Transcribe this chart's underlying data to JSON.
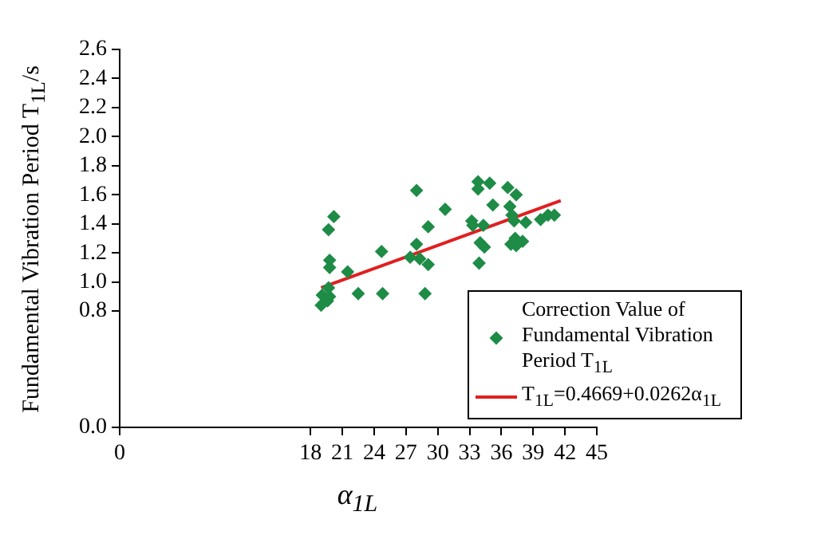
{
  "chart_data": {
    "type": "scatter",
    "xlabel": "α$_{1L}$",
    "ylabel": "Fundamental Vibration Period T$_{1L}$/s",
    "xlim": [
      0,
      45
    ],
    "xticks": [
      0,
      18,
      21,
      24,
      27,
      30,
      33,
      36,
      39,
      42,
      45
    ],
    "ylim": [
      0,
      2.6
    ],
    "yticks": [
      {
        "value": 0,
        "label": "0.0"
      },
      {
        "value": 0.8,
        "label": "0.8"
      },
      {
        "value": 1,
        "label": "1.0"
      },
      {
        "value": 1.2,
        "label": "1.2"
      },
      {
        "value": 1.4,
        "label": "1.4"
      },
      {
        "value": 1.6,
        "label": "1.6"
      },
      {
        "value": 1.8,
        "label": "1.8"
      },
      {
        "value": 2,
        "label": "2.0"
      },
      {
        "value": 2.2,
        "label": "2.2"
      },
      {
        "value": 2.4,
        "label": "2.4"
      },
      {
        "value": 2.6,
        "label": "2.6"
      }
    ],
    "legend": "bottom right",
    "series": [
      {
        "name": "Correction Value of Fundamental Vibration Period T$_{1L}$",
        "color": "#1e8c46",
        "marker": "diamond",
        "x": [
          19.0,
          19.1,
          19.6,
          19.8,
          19.7,
          19.8,
          19.8,
          19.7,
          20.2,
          21.5,
          22.5,
          24.7,
          24.8,
          27.4,
          28.0,
          28.0,
          28.3,
          28.8,
          29.1,
          29.1,
          30.7,
          33.2,
          33.3,
          33.8,
          33.8,
          34.0,
          33.9,
          34.3,
          34.4,
          34.9,
          35.2,
          36.6,
          36.8,
          37.4,
          37.0,
          37.2,
          36.9,
          37.3,
          37.4,
          38.3,
          39.7,
          40.4,
          41.0,
          38.0
        ],
        "values": [
          0.84,
          0.91,
          0.87,
          0.9,
          0.96,
          1.1,
          1.15,
          1.36,
          1.45,
          1.07,
          0.92,
          1.21,
          0.92,
          1.17,
          1.26,
          1.63,
          1.16,
          0.92,
          1.12,
          1.38,
          1.5,
          1.42,
          1.39,
          1.69,
          1.64,
          1.27,
          1.13,
          1.39,
          1.24,
          1.68,
          1.53,
          1.65,
          1.52,
          1.6,
          1.46,
          1.42,
          1.26,
          1.3,
          1.25,
          1.41,
          1.43,
          1.46,
          1.46,
          1.28
        ]
      },
      {
        "type": "line",
        "name": "T$_{1L}$=0.4669+0.0262α$_{1L}$",
        "color": "#e02020",
        "x": [
          19,
          41.6
        ],
        "values": [
          0.96,
          1.56
        ]
      }
    ]
  }
}
